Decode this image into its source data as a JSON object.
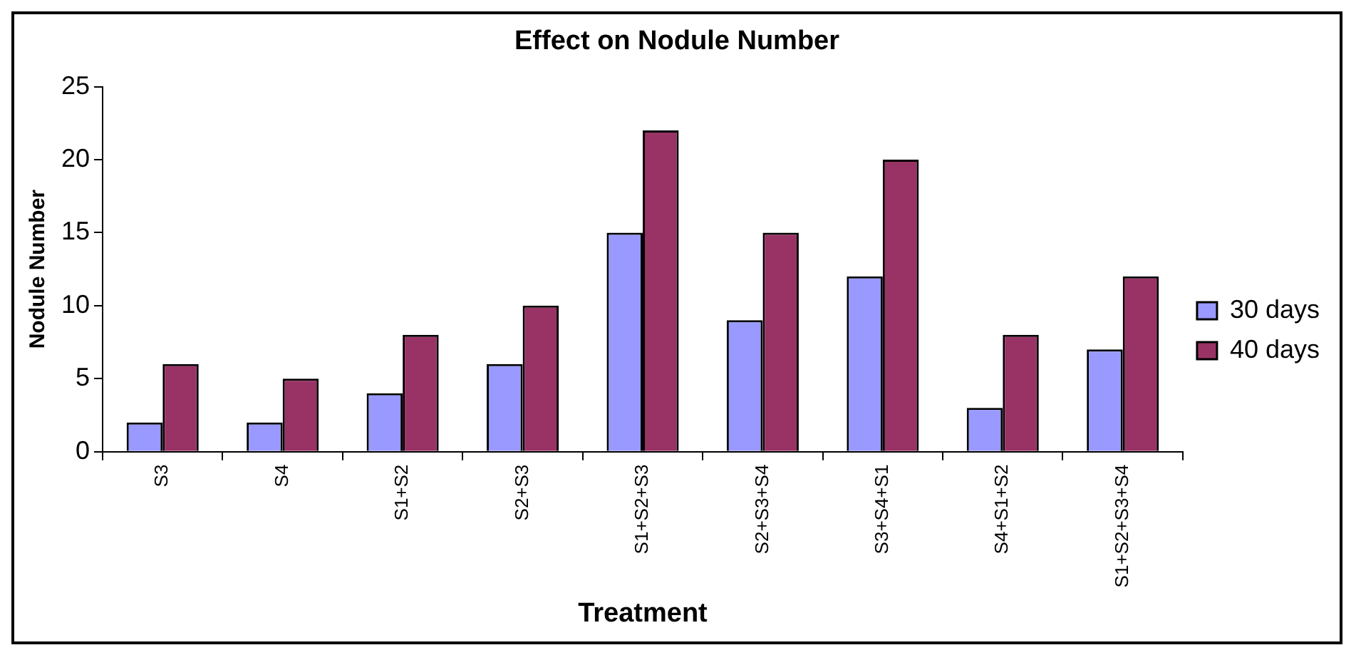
{
  "chart_data": {
    "type": "bar",
    "title": "Effect on Nodule Number",
    "xlabel": "Treatment",
    "ylabel": "Nodule Number",
    "categories": [
      "S3",
      "S4",
      "S1+S2",
      "S2+S3",
      "S1+S2+S3",
      "S2+S3+S4",
      "S3+S4+S1",
      "S4+S1+S2",
      "S1+S2+S3+S4"
    ],
    "series": [
      {
        "name": "30 days",
        "color": "#9999ff",
        "values": [
          2,
          2,
          4,
          6,
          15,
          9,
          12,
          3,
          7
        ]
      },
      {
        "name": "40 days",
        "color": "#993366",
        "values": [
          6,
          5,
          8,
          10,
          22,
          15,
          20,
          8,
          12
        ]
      }
    ],
    "ylim": [
      0,
      25
    ],
    "yticks": [
      0,
      5,
      10,
      15,
      20,
      25
    ],
    "grid": false,
    "legend": "right"
  }
}
